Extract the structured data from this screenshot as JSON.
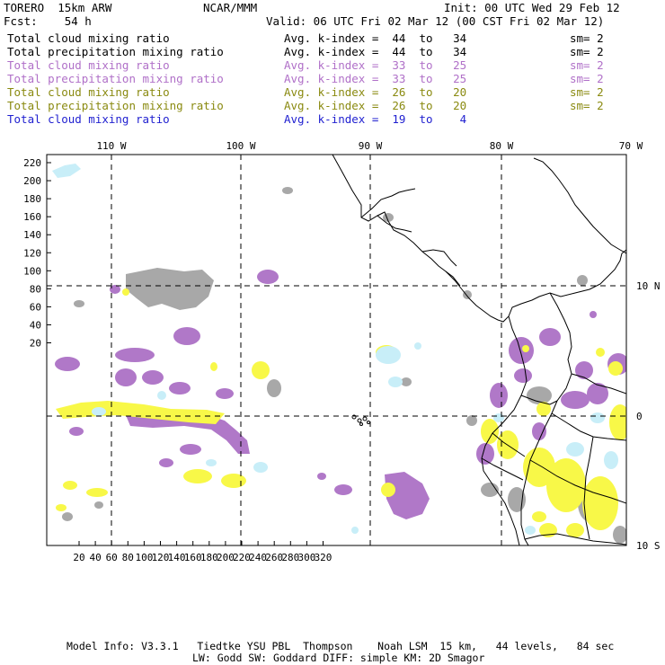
{
  "header": {
    "model": "TORERO  15km ARW",
    "org": "NCAR/MMM",
    "init": "Init: 00 UTC Wed 29 Feb 12",
    "fcst": "Fcst:    54 h",
    "valid": "Valid: 06 UTC Fri 02 Mar 12 (00 CST Fri 02 Mar 12)"
  },
  "fields": [
    {
      "name": "Total cloud mixing ratio",
      "kindex": "Avg. k-index =  44  to   34",
      "sm": "sm= 2",
      "color": "#000000"
    },
    {
      "name": "Total precipitation mixing ratio",
      "kindex": "Avg. k-index =  44  to   34",
      "sm": "sm= 2",
      "color": "#000000"
    },
    {
      "name": "Total cloud mixing ratio",
      "kindex": "Avg. k-index =  33  to   25",
      "sm": "sm= 2",
      "color": "#b070c8"
    },
    {
      "name": "Total precipitation mixing ratio",
      "kindex": "Avg. k-index =  33  to   25",
      "sm": "sm= 2",
      "color": "#b070c8"
    },
    {
      "name": "Total cloud mixing ratio",
      "kindex": "Avg. k-index =  26  to   20",
      "sm": "sm= 2",
      "color": "#8a8a10"
    },
    {
      "name": "Total precipitation mixing ratio",
      "kindex": "Avg. k-index =  26  to   20",
      "sm": "sm= 2",
      "color": "#8a8a10"
    },
    {
      "name": "Total cloud mixing ratio",
      "kindex": "Avg. k-index =  19  to    4",
      "sm": "",
      "color": "#1f1fd0"
    }
  ],
  "map": {
    "lon_labels": [
      "110 W",
      "100 W",
      "90 W",
      "80 W",
      "70 W"
    ],
    "lat_labels": [
      "10 N",
      "0",
      "10 S"
    ],
    "y_ticks": [
      "220",
      "200",
      "180",
      "160",
      "140",
      "120",
      "100",
      "80",
      "60",
      "40",
      "20"
    ],
    "x_ticks": [
      "20",
      "40",
      "60",
      "80",
      "100",
      "120",
      "140",
      "160",
      "180",
      "200",
      "220",
      "240",
      "260",
      "280",
      "300",
      "320"
    ],
    "colors": {
      "gray": "#a8a8a8",
      "purple": "#b078c8",
      "yellow": "#f8f848",
      "lightblue": "#c8eef8"
    }
  },
  "footer": {
    "line1": "Model Info: V3.3.1   Tiedtke YSU PBL  Thompson    Noah LSM  15 km,   44 levels,   84 sec",
    "line2": "LW: Godd SW: Goddard DIFF: simple KM: 2D Smagor"
  }
}
